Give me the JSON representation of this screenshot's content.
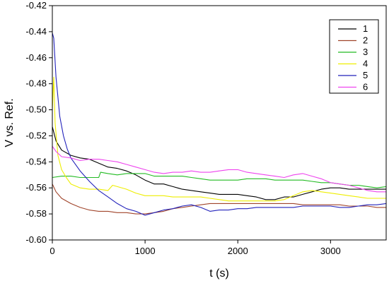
{
  "chart_data": {
    "type": "line",
    "xlabel": "t (s)",
    "ylabel": "V vs. Ref.",
    "xlim": [
      0,
      3600
    ],
    "ylim": [
      -0.6,
      -0.42
    ],
    "xticks": [
      0,
      1000,
      2000,
      3000
    ],
    "xtick_labels": [
      "0",
      "1000",
      "2000",
      "3000"
    ],
    "yticks": [
      -0.42,
      -0.44,
      -0.46,
      -0.48,
      -0.5,
      -0.52,
      -0.54,
      -0.56,
      -0.58,
      -0.6
    ],
    "ytick_labels": [
      "-0.42",
      "-0.44",
      "-0.46",
      "-0.48",
      "-0.50",
      "-0.52",
      "-0.54",
      "-0.56",
      "-0.58",
      "-0.60"
    ],
    "grid": false,
    "legend_position": "top-right",
    "series": [
      {
        "name": "1",
        "color": "#000000",
        "x": [
          0,
          40,
          100,
          200,
          300,
          400,
          500,
          600,
          700,
          800,
          900,
          1000,
          1100,
          1200,
          1300,
          1400,
          1500,
          1600,
          1700,
          1800,
          1900,
          2000,
          2100,
          2200,
          2300,
          2400,
          2500,
          2600,
          2700,
          2800,
          2900,
          3000,
          3100,
          3200,
          3300,
          3400,
          3500,
          3600
        ],
        "y": [
          -0.513,
          -0.524,
          -0.531,
          -0.535,
          -0.537,
          -0.538,
          -0.541,
          -0.544,
          -0.545,
          -0.547,
          -0.55,
          -0.554,
          -0.557,
          -0.557,
          -0.559,
          -0.561,
          -0.562,
          -0.563,
          -0.564,
          -0.565,
          -0.565,
          -0.565,
          -0.566,
          -0.567,
          -0.569,
          -0.569,
          -0.567,
          -0.567,
          -0.565,
          -0.563,
          -0.561,
          -0.56,
          -0.56,
          -0.561,
          -0.561,
          -0.561,
          -0.561,
          -0.561
        ]
      },
      {
        "name": "2",
        "color": "#a0442a",
        "x": [
          0,
          40,
          100,
          200,
          300,
          400,
          500,
          600,
          700,
          800,
          900,
          1000,
          1100,
          1200,
          1300,
          1400,
          1500,
          1600,
          1700,
          1800,
          1900,
          2000,
          2100,
          2200,
          2300,
          2400,
          2500,
          2600,
          2700,
          2800,
          2900,
          3000,
          3100,
          3200,
          3300,
          3400,
          3500,
          3600
        ],
        "y": [
          -0.557,
          -0.563,
          -0.568,
          -0.572,
          -0.575,
          -0.577,
          -0.578,
          -0.578,
          -0.579,
          -0.579,
          -0.58,
          -0.58,
          -0.579,
          -0.578,
          -0.576,
          -0.575,
          -0.574,
          -0.573,
          -0.572,
          -0.572,
          -0.572,
          -0.572,
          -0.572,
          -0.572,
          -0.572,
          -0.572,
          -0.572,
          -0.572,
          -0.573,
          -0.573,
          -0.573,
          -0.573,
          -0.573,
          -0.574,
          -0.574,
          -0.574,
          -0.575,
          -0.575
        ]
      },
      {
        "name": "3",
        "color": "#22bb22",
        "x": [
          0,
          100,
          200,
          300,
          400,
          500,
          520,
          600,
          700,
          800,
          900,
          1000,
          1100,
          1200,
          1300,
          1400,
          1500,
          1600,
          1700,
          1800,
          1900,
          2000,
          2100,
          2200,
          2300,
          2400,
          2500,
          2600,
          2700,
          2800,
          2900,
          3000,
          3100,
          3200,
          3300,
          3400,
          3500,
          3600
        ],
        "y": [
          -0.552,
          -0.551,
          -0.551,
          -0.552,
          -0.552,
          -0.552,
          -0.548,
          -0.549,
          -0.55,
          -0.549,
          -0.549,
          -0.549,
          -0.551,
          -0.551,
          -0.551,
          -0.551,
          -0.552,
          -0.553,
          -0.554,
          -0.554,
          -0.554,
          -0.554,
          -0.553,
          -0.553,
          -0.553,
          -0.554,
          -0.554,
          -0.554,
          -0.554,
          -0.555,
          -0.556,
          -0.556,
          -0.557,
          -0.558,
          -0.558,
          -0.559,
          -0.56,
          -0.559
        ]
      },
      {
        "name": "4",
        "color": "#eeee00",
        "x": [
          0,
          15,
          30,
          60,
          100,
          150,
          200,
          300,
          400,
          500,
          600,
          650,
          700,
          800,
          900,
          1000,
          1100,
          1200,
          1300,
          1400,
          1500,
          1600,
          1700,
          1800,
          1900,
          2000,
          2100,
          2200,
          2300,
          2400,
          2500,
          2600,
          2700,
          2800,
          2900,
          3000,
          3100,
          3200,
          3300,
          3400,
          3500,
          3600
        ],
        "y": [
          -0.5,
          -0.475,
          -0.51,
          -0.535,
          -0.546,
          -0.552,
          -0.557,
          -0.56,
          -0.561,
          -0.561,
          -0.562,
          -0.558,
          -0.559,
          -0.561,
          -0.564,
          -0.566,
          -0.566,
          -0.566,
          -0.567,
          -0.567,
          -0.567,
          -0.567,
          -0.568,
          -0.569,
          -0.57,
          -0.57,
          -0.57,
          -0.57,
          -0.57,
          -0.57,
          -0.569,
          -0.566,
          -0.563,
          -0.562,
          -0.563,
          -0.564,
          -0.565,
          -0.566,
          -0.567,
          -0.568,
          -0.568,
          -0.568
        ]
      },
      {
        "name": "5",
        "color": "#2222bb",
        "x": [
          0,
          15,
          40,
          80,
          120,
          160,
          200,
          300,
          400,
          500,
          600,
          700,
          800,
          900,
          1000,
          1100,
          1200,
          1300,
          1400,
          1500,
          1600,
          1700,
          1800,
          1900,
          2000,
          2100,
          2200,
          2300,
          2400,
          2500,
          2600,
          2700,
          2800,
          2900,
          3000,
          3100,
          3200,
          3300,
          3400,
          3500,
          3600
        ],
        "y": [
          -0.441,
          -0.445,
          -0.475,
          -0.505,
          -0.52,
          -0.53,
          -0.537,
          -0.547,
          -0.555,
          -0.562,
          -0.567,
          -0.572,
          -0.576,
          -0.578,
          -0.581,
          -0.579,
          -0.577,
          -0.576,
          -0.574,
          -0.573,
          -0.575,
          -0.578,
          -0.577,
          -0.577,
          -0.576,
          -0.576,
          -0.575,
          -0.575,
          -0.575,
          -0.575,
          -0.575,
          -0.574,
          -0.574,
          -0.574,
          -0.574,
          -0.575,
          -0.575,
          -0.574,
          -0.573,
          -0.573,
          -0.572
        ]
      },
      {
        "name": "6",
        "color": "#ee44ee",
        "x": [
          0,
          40,
          100,
          200,
          300,
          400,
          500,
          600,
          700,
          800,
          900,
          1000,
          1100,
          1200,
          1300,
          1400,
          1500,
          1600,
          1700,
          1800,
          1900,
          2000,
          2100,
          2200,
          2300,
          2400,
          2500,
          2600,
          2700,
          2800,
          2900,
          3000,
          3100,
          3200,
          3300,
          3400,
          3500,
          3600
        ],
        "y": [
          -0.528,
          -0.532,
          -0.536,
          -0.537,
          -0.539,
          -0.538,
          -0.538,
          -0.539,
          -0.54,
          -0.542,
          -0.544,
          -0.546,
          -0.548,
          -0.549,
          -0.548,
          -0.548,
          -0.547,
          -0.548,
          -0.548,
          -0.547,
          -0.546,
          -0.546,
          -0.548,
          -0.549,
          -0.55,
          -0.551,
          -0.552,
          -0.55,
          -0.549,
          -0.551,
          -0.553,
          -0.556,
          -0.557,
          -0.558,
          -0.56,
          -0.562,
          -0.563,
          -0.563
        ]
      }
    ]
  }
}
